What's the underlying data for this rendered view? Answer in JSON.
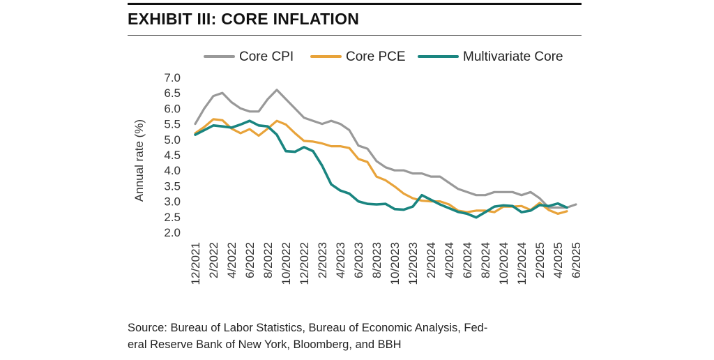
{
  "header": {
    "title": "EXHIBIT III: CORE INFLATION"
  },
  "source": {
    "line1": "Source: Bureau of Labor Statistics, Bureau of Economic Analysis, Fed-",
    "line2": "eral Reserve Bank of New York, Bloomberg, and BBH"
  },
  "chart_data": {
    "type": "line",
    "ylabel": "Annual rate (%)",
    "xlabel": "",
    "ylim": [
      2.0,
      7.0
    ],
    "yticks": [
      "7.0",
      "6.5",
      "6.0",
      "5.5",
      "5.0",
      "4.5",
      "4.0",
      "3.5",
      "3.0",
      "2.5",
      "2.0"
    ],
    "ytick_values": [
      7.0,
      6.5,
      6.0,
      5.5,
      5.0,
      4.5,
      4.0,
      3.5,
      3.0,
      2.5,
      2.0
    ],
    "xlim": [
      0,
      42
    ],
    "xtick_labels": [
      "12/2021",
      "2/2022",
      "4/2022",
      "6/2022",
      "8/2022",
      "10/2022",
      "12/2022",
      "2/2023",
      "4/2023",
      "6/2023",
      "8/2023",
      "10/2023",
      "12/2023",
      "2/2024",
      "4/2024",
      "6/2024",
      "8/2024",
      "10/2024",
      "12/2024",
      "2/2025",
      "4/2025",
      "6/2025"
    ],
    "xtick_positions": [
      0,
      2,
      4,
      6,
      8,
      10,
      12,
      14,
      16,
      18,
      20,
      22,
      24,
      26,
      28,
      30,
      32,
      34,
      36,
      38,
      40,
      42
    ],
    "legend_position": "top",
    "series": [
      {
        "name": "Core CPI",
        "color": "#999999",
        "x": [
          0,
          1,
          2,
          3,
          4,
          5,
          6,
          7,
          8,
          9,
          10,
          11,
          12,
          13,
          14,
          15,
          16,
          17,
          18,
          19,
          20,
          21,
          22,
          23,
          24,
          25,
          26,
          27,
          28,
          29,
          30,
          31,
          32,
          33,
          34,
          35,
          36,
          37,
          38,
          39,
          40,
          41,
          42
        ],
        "values": [
          5.5,
          6.0,
          6.4,
          6.5,
          6.2,
          6.0,
          5.9,
          5.9,
          6.3,
          6.6,
          6.3,
          6.0,
          5.7,
          5.6,
          5.5,
          5.6,
          5.5,
          5.3,
          4.8,
          4.7,
          4.3,
          4.1,
          4.0,
          4.0,
          3.9,
          3.9,
          3.8,
          3.8,
          3.6,
          3.4,
          3.3,
          3.2,
          3.2,
          3.3,
          3.3,
          3.3,
          3.2,
          3.3,
          3.1,
          2.8,
          2.8,
          2.8,
          2.9
        ]
      },
      {
        "name": "Core PCE",
        "color": "#e8a33a",
        "x": [
          0,
          1,
          2,
          3,
          4,
          5,
          6,
          7,
          8,
          9,
          10,
          11,
          12,
          13,
          14,
          15,
          16,
          17,
          18,
          19,
          20,
          21,
          22,
          23,
          24,
          25,
          26,
          27,
          28,
          29,
          30,
          31,
          32,
          33,
          34,
          35,
          36,
          37,
          38,
          39,
          40,
          41
        ],
        "values": [
          5.2,
          5.4,
          5.65,
          5.62,
          5.35,
          5.2,
          5.33,
          5.12,
          5.35,
          5.6,
          5.48,
          5.2,
          4.95,
          4.93,
          4.87,
          4.78,
          4.78,
          4.72,
          4.37,
          4.27,
          3.8,
          3.68,
          3.48,
          3.25,
          3.1,
          3.02,
          3.0,
          3.0,
          2.9,
          2.7,
          2.65,
          2.7,
          2.7,
          2.65,
          2.83,
          2.83,
          2.85,
          2.72,
          2.95,
          2.72,
          2.6,
          2.68
        ]
      },
      {
        "name": "Multivariate Core",
        "color": "#1a8580",
        "x": [
          0,
          1,
          2,
          3,
          4,
          5,
          6,
          7,
          8,
          9,
          10,
          11,
          12,
          13,
          14,
          15,
          16,
          17,
          18,
          19,
          20,
          21,
          22,
          23,
          24,
          25,
          26,
          27,
          28,
          29,
          30,
          31,
          32,
          33,
          34,
          35,
          36,
          37,
          38,
          39,
          40,
          41
        ],
        "values": [
          5.15,
          5.3,
          5.45,
          5.42,
          5.38,
          5.48,
          5.6,
          5.45,
          5.42,
          5.15,
          4.62,
          4.6,
          4.75,
          4.62,
          4.15,
          3.55,
          3.35,
          3.25,
          3.0,
          2.92,
          2.9,
          2.92,
          2.75,
          2.73,
          2.83,
          3.2,
          3.05,
          2.9,
          2.78,
          2.66,
          2.6,
          2.48,
          2.65,
          2.83,
          2.87,
          2.85,
          2.65,
          2.7,
          2.88,
          2.85,
          2.93,
          2.8
        ]
      }
    ]
  }
}
